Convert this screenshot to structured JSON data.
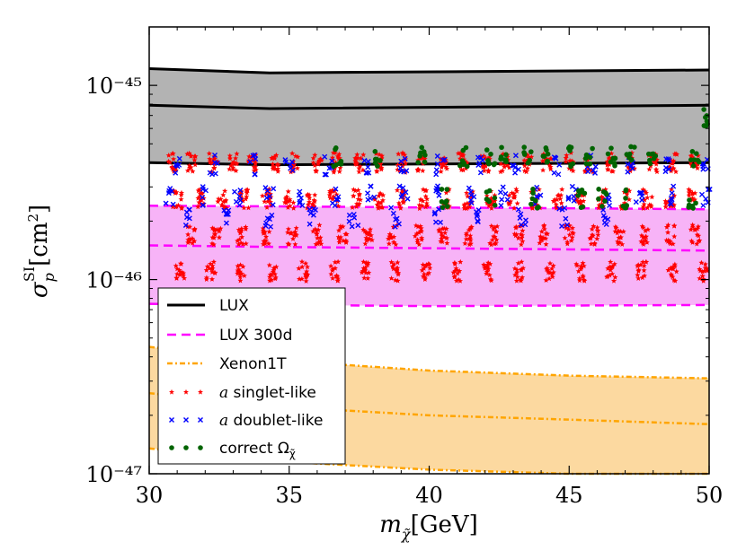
{
  "chart_data": {
    "type": "scatter",
    "title": "",
    "xlabel": "m_χ̃[GeV]",
    "ylabel": "σ_p^SI[cm²]",
    "xlim": [
      30,
      50
    ],
    "ylim": [
      1e-47,
      2e-45
    ],
    "yscale": "log",
    "x_ticks": [
      30,
      35,
      40,
      45,
      50
    ],
    "x_tick_labels": [
      "30",
      "35",
      "40",
      "45",
      "50"
    ],
    "y_ticks": [
      1e-47,
      1e-46,
      1e-45
    ],
    "y_tick_labels": [
      "10⁻⁴⁷",
      "10⁻⁴⁶",
      "10⁻⁴⁵"
    ],
    "bands": [
      {
        "name": "LUX",
        "style": "solid",
        "color": "#000000",
        "fill": "#b3b3b3",
        "x": [
          30,
          34.3,
          50
        ],
        "upper": [
          1.22e-45,
          1.16e-45,
          1.2e-45
        ],
        "central": [
          7.9e-46,
          7.6e-46,
          7.9e-46
        ],
        "lower": [
          4e-46,
          3.9e-46,
          4e-46
        ]
      },
      {
        "name": "LUX 300d",
        "style": "dashed",
        "color": "#ff00ff",
        "fill": "#f7b3f7",
        "x": [
          30,
          35,
          40,
          45,
          50
        ],
        "upper": [
          2.4e-46,
          2.38e-46,
          2.35e-46,
          2.33e-46,
          2.3e-46
        ],
        "central": [
          1.5e-46,
          1.47e-46,
          1.45e-46,
          1.43e-46,
          1.41e-46
        ],
        "lower": [
          7.5e-47,
          7.4e-47,
          7.3e-47,
          7.35e-47,
          7.4e-47
        ]
      },
      {
        "name": "Xenon1T",
        "style": "dashdot",
        "color": "#ffa500",
        "fill": "#fcd9a0",
        "x": [
          30,
          35,
          40,
          45,
          50
        ],
        "upper": [
          4.5e-47,
          3.8e-47,
          3.4e-47,
          3.2e-47,
          3.1e-47
        ],
        "central": [
          2.6e-47,
          2.2e-47,
          2e-47,
          1.9e-47,
          1.8e-47
        ],
        "lower": [
          1.35e-47,
          1.15e-47,
          1.05e-47,
          1e-47,
          1e-47
        ]
      }
    ],
    "scatter_groups": [
      {
        "name": "a singlet-like",
        "marker": "star",
        "color": "#ff0000",
        "clusters": [
          {
            "x": [
              30.8,
              31.5,
              32.3,
              33.0,
              33.7,
              34.5,
              35.2,
              36.0,
              36.7,
              37.5,
              38.2,
              39.0,
              39.7,
              40.5,
              41.2,
              42.0,
              42.7,
              43.5,
              44.2,
              45.0,
              45.7,
              46.5,
              47.2,
              48.0,
              48.7,
              49.5
            ],
            "y": 4e-46
          },
          {
            "x": [
              31.0,
              31.8,
              32.6,
              33.4,
              34.2,
              35.0,
              35.8,
              36.6,
              37.4,
              38.2,
              39.0,
              39.8,
              40.6,
              41.4,
              42.2,
              43.0,
              43.8,
              44.6,
              45.4,
              46.2,
              47.0,
              47.8,
              48.6,
              49.4
            ],
            "y": 2.6e-46
          },
          {
            "x": [
              31.5,
              32.4,
              33.3,
              34.2,
              35.1,
              36.0,
              36.9,
              37.8,
              38.7,
              39.6,
              40.5,
              41.4,
              42.3,
              43.2,
              44.1,
              45.0,
              45.9,
              46.8,
              47.7,
              48.6,
              49.5
            ],
            "y": 1.7e-46
          },
          {
            "x": [
              31.1,
              32.2,
              33.3,
              34.4,
              35.5,
              36.6,
              37.7,
              38.8,
              39.9,
              41.0,
              42.1,
              43.2,
              44.3,
              45.4,
              46.5,
              47.6,
              48.7,
              49.8
            ],
            "y": 1.1e-46
          }
        ]
      },
      {
        "name": "a doublet-like",
        "marker": "x",
        "color": "#0000ff",
        "clusters": [
          {
            "x": [
              31.0,
              32.3,
              33.7,
              35.0,
              36.4,
              37.7,
              39.1,
              40.4,
              41.8,
              43.1,
              44.5,
              45.8,
              47.2,
              48.5,
              49.9
            ],
            "y": 3.9e-46
          },
          {
            "x": [
              30.7,
              31.9,
              33.1,
              34.3,
              35.5,
              36.7,
              37.9,
              39.1,
              40.3,
              41.5,
              42.7,
              43.9,
              45.1,
              46.3,
              47.5,
              48.7,
              49.9
            ],
            "y": 2.7e-46
          },
          {
            "x": [
              31.3,
              32.8,
              34.3,
              35.8,
              37.3,
              38.8,
              40.3,
              41.8,
              43.3,
              44.8,
              46.3
            ],
            "y": 2.1e-46
          }
        ]
      },
      {
        "name": "correct Ω_χ̃",
        "marker": "circle",
        "color": "#006400",
        "clusters": [
          {
            "x": [
              36.7,
              38.2,
              39.7,
              41.2,
              42.2,
              42.7,
              43.5,
              44.2,
              45.0,
              45.7,
              46.5,
              47.2,
              48.0,
              49.5
            ],
            "y": 4.3e-46
          },
          {
            "x": [
              40.6,
              42.2,
              43.8,
              45.4,
              46.2,
              47.0,
              49.4
            ],
            "y": 2.6e-46
          },
          {
            "x": [
              49.9
            ],
            "y": 6.8e-46
          }
        ]
      }
    ],
    "legend": {
      "position": "lower-left",
      "entries": [
        "LUX",
        "LUX 300d",
        "Xenon1T",
        "a singlet-like",
        "a doublet-like",
        "correct Ω_χ̃"
      ]
    }
  },
  "axes": {
    "xlabel_main": "m",
    "xlabel_sub": "χ̃",
    "xlabel_unit": "[GeV]",
    "ylabel_main": "σ",
    "ylabel_sub": "p",
    "ylabel_sup": "SI",
    "ylabel_unit": "[cm",
    "ylabel_unit_sup": "2",
    "ylabel_unit_close": "]"
  },
  "legend_labels": {
    "lux": "LUX",
    "lux300": "LUX 300d",
    "xenon": "Xenon1T",
    "singlet_prefix": "a",
    "singlet_rest": " singlet-like",
    "doublet_prefix": "a",
    "doublet_rest": " doublet-like",
    "correct": "correct Ω",
    "correct_sub": "χ̃"
  }
}
